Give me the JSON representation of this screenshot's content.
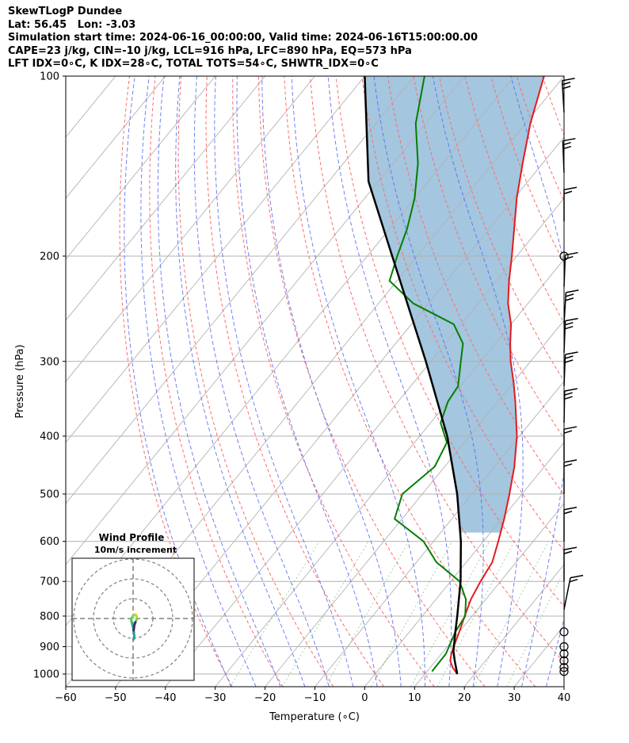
{
  "header": {
    "line1": "SkewTLogP Dundee",
    "line2": "Lat: 56.45   Lon: -3.03",
    "line3": "Simulation start time: 2024-06-16_00:00:00, Valid time: 2024-06-16T15:00:00.00",
    "line4": "CAPE=23 j/kg, CIN=-10 j/kg, LCL=916 hPa, LFC=890 hPa, EQ=573 hPa",
    "line5": "LFT IDX=0∘C, K IDX=28∘C, TOTAL TOTS=54∘C, SHWTR_IDX=0∘C"
  },
  "chart_data": [
    {
      "type": "line",
      "subtype": "skew-t log-p",
      "xlabel": "Temperature (∘C)",
      "ylabel": "Pressure (hPa)",
      "xlim": [
        -60,
        40
      ],
      "ylim": [
        1050,
        100
      ],
      "yscale": "log",
      "x_ticks": [
        "−60",
        "−50",
        "−40",
        "−30",
        "−20",
        "−10",
        "0",
        "10",
        "20",
        "30",
        "40"
      ],
      "y_ticks": [
        "100",
        "200",
        "300",
        "400",
        "500",
        "600",
        "700",
        "800",
        "900",
        "1000"
      ],
      "x_tick_values": [
        -60,
        -50,
        -40,
        -30,
        -20,
        -10,
        0,
        10,
        20,
        30,
        40
      ],
      "y_tick_values": [
        100,
        200,
        300,
        400,
        500,
        600,
        700,
        800,
        900,
        1000
      ],
      "grid": true,
      "series": [
        {
          "role": "temperature",
          "color": "#e41a1c",
          "points": [
            [
              1000,
              16.5
            ],
            [
              975,
              14.5
            ],
            [
              950,
              12.9
            ],
            [
              925,
              12.0
            ],
            [
              900,
              11.3
            ],
            [
              850,
              10.0
            ],
            [
              800,
              8.5
            ],
            [
              750,
              7.0
            ],
            [
              700,
              6.0
            ],
            [
              650,
              5.2
            ],
            [
              600,
              3.0
            ],
            [
              550,
              0.5
            ],
            [
              500,
              -2.5
            ],
            [
              450,
              -6.0
            ],
            [
              400,
              -10.5
            ],
            [
              350,
              -16.5
            ],
            [
              325,
              -20.0
            ],
            [
              300,
              -24.0
            ],
            [
              280,
              -27.0
            ],
            [
              260,
              -30.0
            ],
            [
              240,
              -34.0
            ],
            [
              220,
              -37.5
            ],
            [
              200,
              -41.0
            ],
            [
              180,
              -45.0
            ],
            [
              160,
              -49.5
            ],
            [
              140,
              -54.0
            ],
            [
              120,
              -59.0
            ],
            [
              100,
              -64.0
            ]
          ]
        },
        {
          "role": "dewpoint",
          "color": "#008000",
          "points": [
            [
              990,
              11.0
            ],
            [
              925,
              10.9
            ],
            [
              850,
              9.2
            ],
            [
              800,
              8.6
            ],
            [
              750,
              6.0
            ],
            [
              700,
              1.8
            ],
            [
              650,
              -6.0
            ],
            [
              600,
              -12.0
            ],
            [
              550,
              -21.5
            ],
            [
              500,
              -24.0
            ],
            [
              450,
              -22.0
            ],
            [
              410,
              -23.5
            ],
            [
              380,
              -28.0
            ],
            [
              350,
              -30.0
            ],
            [
              330,
              -30.5
            ],
            [
              300,
              -34.0
            ],
            [
              280,
              -36.5
            ],
            [
              260,
              -41.5
            ],
            [
              240,
              -53.0
            ],
            [
              220,
              -61.5
            ],
            [
              200,
              -64.0
            ],
            [
              180,
              -66.5
            ],
            [
              160,
              -70.0
            ],
            [
              140,
              -75.0
            ],
            [
              120,
              -82.0
            ],
            [
              100,
              -88.0
            ]
          ]
        },
        {
          "role": "parcel",
          "color": "#000000",
          "points": [
            [
              1000,
              16.5
            ],
            [
              950,
              13.8
            ],
            [
              916,
              12.0
            ],
            [
              850,
              9.2
            ],
            [
              800,
              7.0
            ],
            [
              700,
              2.0
            ],
            [
              600,
              -4.5
            ],
            [
              500,
              -13.0
            ],
            [
              400,
              -24.5
            ],
            [
              300,
              -41.0
            ],
            [
              200,
              -65.0
            ],
            [
              150,
              -82.0
            ],
            [
              100,
              -100.0
            ]
          ]
        }
      ],
      "cape_fill_color": "#a4c6df",
      "wind_barbs_pressures": [
        100,
        200,
        300,
        400,
        500,
        600,
        700,
        800,
        850,
        900,
        925,
        950,
        975,
        1000
      ],
      "inset": {
        "title": "Wind Profile",
        "subtitle": "10m/s increment"
      }
    }
  ]
}
